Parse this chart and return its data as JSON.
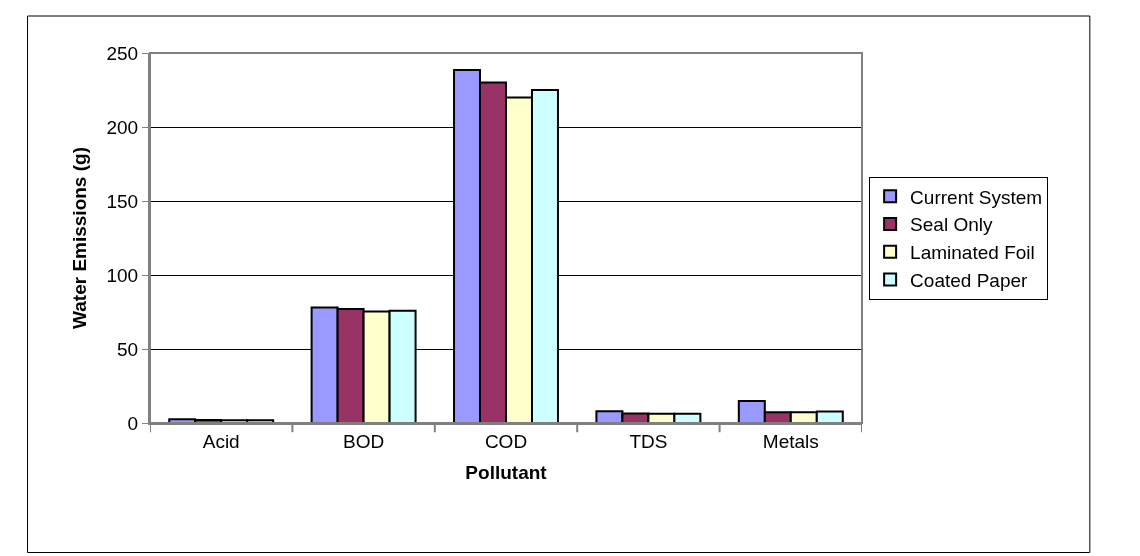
{
  "chart_data": {
    "type": "bar",
    "xlabel": "Pollutant",
    "ylabel": "Water Emissions (g)",
    "categories": [
      "Acid",
      "BOD",
      "COD",
      "TDS",
      "Metals"
    ],
    "series": [
      {
        "name": "Current System",
        "color": "#9999ff",
        "values": [
          2.5,
          78,
          238.5,
          7.9,
          14.9
        ]
      },
      {
        "name": "Seal Only",
        "color": "#993366",
        "values": [
          2,
          77,
          230,
          6.5,
          7.2
        ]
      },
      {
        "name": "Laminated Foil",
        "color": "#ffffcc",
        "values": [
          1.8,
          75.3,
          220,
          6.3,
          7.2
        ]
      },
      {
        "name": "Coated Paper",
        "color": "#ccffff",
        "values": [
          1.8,
          75.8,
          225,
          6.3,
          7.7
        ]
      }
    ],
    "ylim": [
      0,
      250
    ],
    "yticks": [
      0,
      50,
      100,
      150,
      200,
      250
    ],
    "grid": "y",
    "legend": "right"
  }
}
